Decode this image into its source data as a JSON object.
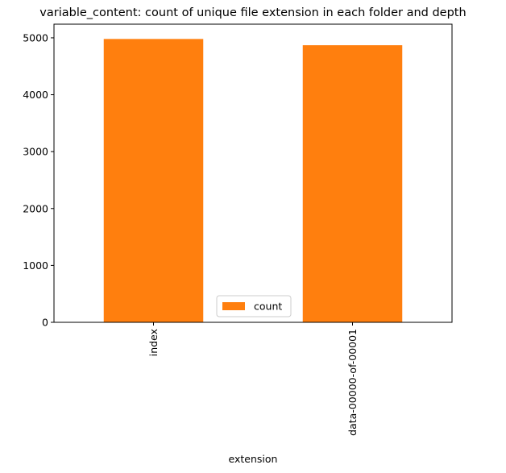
{
  "chart_data": {
    "type": "bar",
    "title": "variable_content: count of unique file extension in each folder and depth",
    "xlabel": "extension",
    "ylabel": "",
    "categories": [
      "index",
      "data-00000-of-00001"
    ],
    "series": [
      {
        "name": "count",
        "values": [
          4980,
          4870
        ],
        "color": "#ff7f0e"
      }
    ],
    "ylim": [
      0,
      5240
    ],
    "yticks": [
      0,
      1000,
      2000,
      3000,
      4000,
      5000
    ],
    "xtick_rotation": 90,
    "grid": false,
    "legend_position": "bottom-center"
  }
}
